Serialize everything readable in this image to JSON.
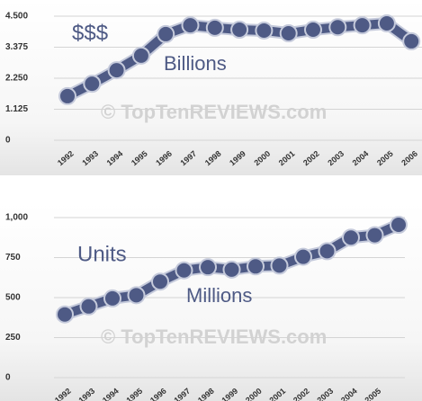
{
  "chart_data": [
    {
      "type": "line",
      "categories": [
        "1992",
        "1993",
        "1994",
        "1995",
        "1996",
        "1997",
        "1998",
        "1999",
        "2000",
        "2001",
        "2002",
        "2003",
        "2004",
        "2005",
        "2006"
      ],
      "values": [
        1.6,
        2.05,
        2.54,
        3.07,
        3.85,
        4.17,
        4.08,
        4.01,
        3.98,
        3.88,
        4.01,
        4.1,
        4.17,
        4.24,
        3.59
      ],
      "color": "#4e5a85",
      "ylim": [
        0,
        4.5
      ],
      "yticks": [
        0,
        1.125,
        {
          "value": 2.25,
          "label": "2.250"
        },
        3.375,
        {
          "value": 4.5,
          "label": "4.500"
        }
      ],
      "grid": true,
      "annotations": [
        "$$$",
        "Billions",
        "© TopTenREVIEWS.com"
      ]
    },
    {
      "type": "line",
      "categories": [
        "1992",
        "1993",
        "1994",
        "1995",
        "1996",
        "1997",
        "1998",
        "1999",
        "2000",
        "2001",
        "2002",
        "2003",
        "2004",
        "2005",
        null
      ],
      "values": [
        395,
        445,
        495,
        515,
        600,
        670,
        690,
        675,
        695,
        700,
        755,
        790,
        875,
        890,
        955
      ],
      "color": "#4e5a85",
      "ylim": [
        0,
        1000
      ],
      "yticks": [
        0,
        250,
        500,
        750,
        {
          "value": 1000,
          "label": "1,000"
        }
      ],
      "grid": true,
      "annotations": [
        "Units",
        "Millions",
        "© TopTenREVIEWS.com"
      ]
    }
  ]
}
